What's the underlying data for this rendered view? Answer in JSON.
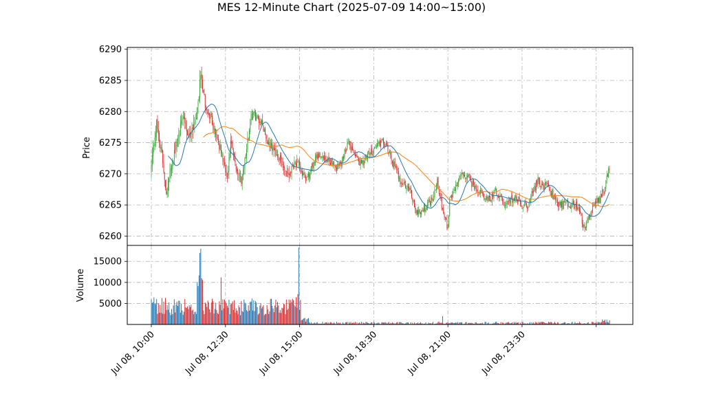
{
  "chart_data": {
    "title": "MES 12-Minute Chart (2025-07-09 14:00~15:00)",
    "type": "candlestick",
    "price_panel": {
      "ylabel": "Price",
      "yticks": [
        6260,
        6265,
        6270,
        6275,
        6280,
        6285,
        6290
      ],
      "ylim": [
        6258.5,
        6290.3
      ],
      "grid": true
    },
    "volume_panel": {
      "ylabel": "Volume",
      "yticks": [
        5000,
        10000,
        15000
      ],
      "ylim": [
        0,
        18800
      ],
      "grid": true
    },
    "xticks": [
      "Jul 08, 10:00",
      "Jul 08, 12:30",
      "Jul 08, 15:00",
      "Jul 08, 18:30",
      "Jul 08, 21:00",
      "Jul 08, 23:30"
    ],
    "colors": {
      "up": "#2ca02c",
      "down": "#d62728",
      "ma_fast": "#1f77b4",
      "ma_slow": "#ff7f0e",
      "vol_up": "#1f77b4",
      "vol_down": "#d62728"
    },
    "close_path": [
      [
        0,
        6272
      ],
      [
        6,
        6278
      ],
      [
        12,
        6273
      ],
      [
        17,
        6267
      ],
      [
        24,
        6272
      ],
      [
        30,
        6276
      ],
      [
        36,
        6279
      ],
      [
        42,
        6276
      ],
      [
        48,
        6278
      ],
      [
        52,
        6280
      ],
      [
        56,
        6286
      ],
      [
        62,
        6280
      ],
      [
        68,
        6279
      ],
      [
        74,
        6276
      ],
      [
        80,
        6273
      ],
      [
        86,
        6269
      ],
      [
        90,
        6275
      ],
      [
        96,
        6271
      ],
      [
        102,
        6269
      ],
      [
        108,
        6274
      ],
      [
        114,
        6280
      ],
      [
        120,
        6279
      ],
      [
        126,
        6278
      ],
      [
        132,
        6275
      ],
      [
        138,
        6274
      ],
      [
        144,
        6273
      ],
      [
        150,
        6271
      ],
      [
        156,
        6270
      ],
      [
        162,
        6272
      ],
      [
        168,
        6271
      ],
      [
        174,
        6269
      ],
      [
        180,
        6270
      ],
      [
        186,
        6273
      ],
      [
        192,
        6273
      ],
      [
        198,
        6272
      ],
      [
        204,
        6272
      ],
      [
        210,
        6271
      ],
      [
        216,
        6272
      ],
      [
        222,
        6275
      ],
      [
        228,
        6274
      ],
      [
        234,
        6272
      ],
      [
        240,
        6272
      ],
      [
        246,
        6273
      ],
      [
        252,
        6274
      ],
      [
        258,
        6275
      ],
      [
        264,
        6275
      ],
      [
        270,
        6273
      ],
      [
        276,
        6271
      ],
      [
        282,
        6269
      ],
      [
        288,
        6268
      ],
      [
        294,
        6267
      ],
      [
        300,
        6264
      ],
      [
        306,
        6264
      ],
      [
        312,
        6265
      ],
      [
        318,
        6266
      ],
      [
        324,
        6269
      ],
      [
        330,
        6264
      ],
      [
        336,
        6261
      ],
      [
        338,
        6266
      ],
      [
        342,
        6267
      ],
      [
        348,
        6269
      ],
      [
        354,
        6270
      ],
      [
        360,
        6269
      ],
      [
        366,
        6268
      ],
      [
        372,
        6267
      ],
      [
        378,
        6266
      ],
      [
        384,
        6266
      ],
      [
        390,
        6267
      ],
      [
        396,
        6266
      ],
      [
        402,
        6265
      ],
      [
        408,
        6266
      ],
      [
        414,
        6266
      ],
      [
        420,
        6265
      ],
      [
        426,
        6265
      ],
      [
        432,
        6267
      ],
      [
        438,
        6269
      ],
      [
        444,
        6268
      ],
      [
        450,
        6268
      ],
      [
        456,
        6266
      ],
      [
        462,
        6265
      ],
      [
        468,
        6265
      ],
      [
        474,
        6265
      ],
      [
        480,
        6265
      ],
      [
        486,
        6264
      ],
      [
        490,
        6261
      ],
      [
        496,
        6263
      ],
      [
        502,
        6265
      ],
      [
        508,
        6266
      ],
      [
        514,
        6268
      ],
      [
        519,
        6271
      ]
    ]
  }
}
